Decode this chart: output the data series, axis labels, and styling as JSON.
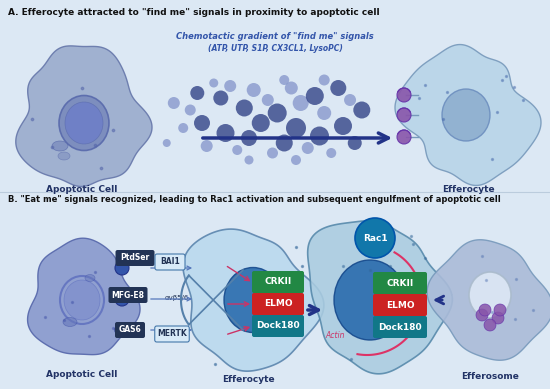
{
  "bg_color": "#dce8f4",
  "title_a": "A. Efferocyte attracted to \"find me\" signals in proximity to apoptotic cell",
  "title_b": "B. \"Eat me\" signals recognized, leading to Rac1 activation and subsequent engulfment of apoptotic cell",
  "chem_line1": "Chemotactic gradient of \"find me\" signals",
  "chem_line2": "(ATP, UTP, S1P, CX3CL1, LysoPC)",
  "label_apoptotic": "Apoptotic Cell",
  "label_efferocyte": "Efferocyte",
  "label_efferosome": "Efferosome",
  "label_crkii": "CRKII",
  "label_elmo": "ELMO",
  "label_dock180": "Dock180",
  "label_rac1": "Rac1",
  "label_bai1": "BAI1",
  "label_mfge8": "MFG-E8",
  "label_gas6": "GAS6",
  "label_mertk": "MERTK",
  "label_ptdser": "PtdSer",
  "label_alphav": "αvβ5/6",
  "label_actin": "Actin",
  "apoptotic_fill": "#8899cc",
  "apoptotic_nucleus": "#6677bb",
  "efferocyte_a_fill": "#aaccee",
  "efferocyte_a_nucleus": "#7799cc",
  "efferocyte_b_outer": "#aaccdd",
  "efferocyte_b_inner": "#3377aa",
  "efferocyte2_fill": "#88aacc",
  "efferosome_fill": "#aabbd8",
  "efferosome_nucleus": "#ccccee",
  "dot_dark": "#334488",
  "dot_light": "#8899cc",
  "arrow_color": "#223388",
  "pink_arrow": "#cc3366",
  "green_crkii": "#228844",
  "red_elmo": "#cc2222",
  "teal_dock": "#117788",
  "dark_box": "#223355",
  "light_box_fill": "#d8eaf8",
  "light_box_edge": "#4477aa",
  "receptor_purple": "#8855aa"
}
